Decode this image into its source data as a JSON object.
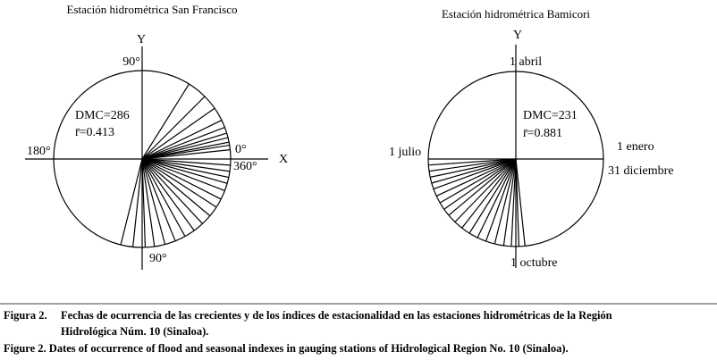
{
  "figure": {
    "left": {
      "title": "Estación hidrométrica San Francisco",
      "y_axis": "Y",
      "x_axis": "X",
      "top": "90°",
      "left_label": "180°",
      "right_upper": "0°",
      "right_lower": "360°",
      "bottom": "90°",
      "dmc": "DMC=286",
      "r": "r̄=0.413"
    },
    "right": {
      "title": "Estación hidrométrica Bamicori",
      "y_axis": "Y",
      "top": "1 abril",
      "left_label": "1 julio",
      "right_upper": "1 enero",
      "right_lower": "31 diciembre",
      "bottom": "1 octubre",
      "dmc": "DMC=231",
      "r": "r̄=0.881"
    },
    "caption": {
      "es_lead": "Figura 2.",
      "es_line1": "Fechas de ocurrencia de las crecientes y de los índices de estacionalidad en las estaciones hidrométricas de la Región",
      "es_line2": "Hidrológica Núm. 10 (Sinaloa).",
      "en": "Figure 2. Dates of occurrence of flood and seasonal indexes in gauging stations of Hidrological Region No. 10 (Sinaloa)."
    }
  }
}
